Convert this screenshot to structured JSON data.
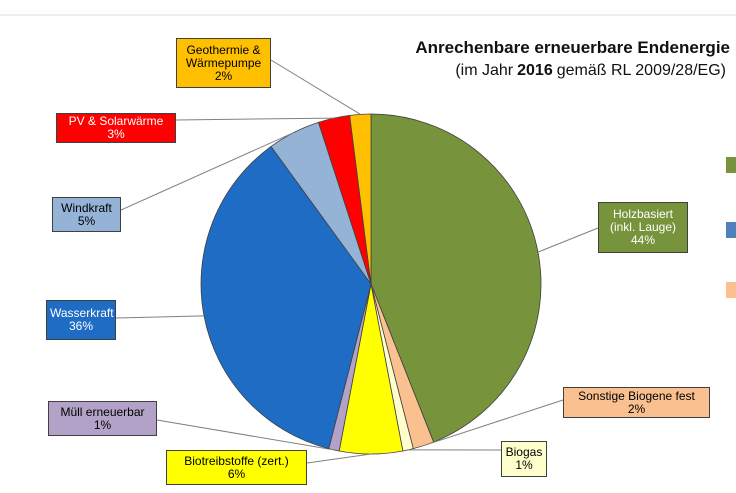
{
  "chart_data": {
    "type": "pie",
    "title": "Anrechenbare erneuerbare Endenergie",
    "subtitle": [
      "(im Jahr",
      "2016",
      "gemäß RL 2009/28/EG)"
    ],
    "categories": [
      "Holzbasiert (inkl. Lauge)",
      "Sonstige Biogene fest",
      "Biogas",
      "Biotreibstoffe (zert.)",
      "Müll erneuerbar",
      "Wasserkraft",
      "Windkraft",
      "PV & Solarwärme",
      "Geothermie & Wärmepumpe"
    ],
    "values": [
      44,
      2,
      1,
      6,
      1,
      36,
      5,
      3,
      2
    ],
    "value_labels": [
      "44%",
      "2%",
      "1%",
      "6%",
      "1%",
      "36%",
      "5%",
      "3%",
      "2%"
    ],
    "colors": [
      "#77933c",
      "#fac090",
      "#ffffcc",
      "#ffff00",
      "#b3a2c7",
      "#1f6cc4",
      "#95b3d7",
      "#ff0000",
      "#ffc000"
    ]
  }
}
